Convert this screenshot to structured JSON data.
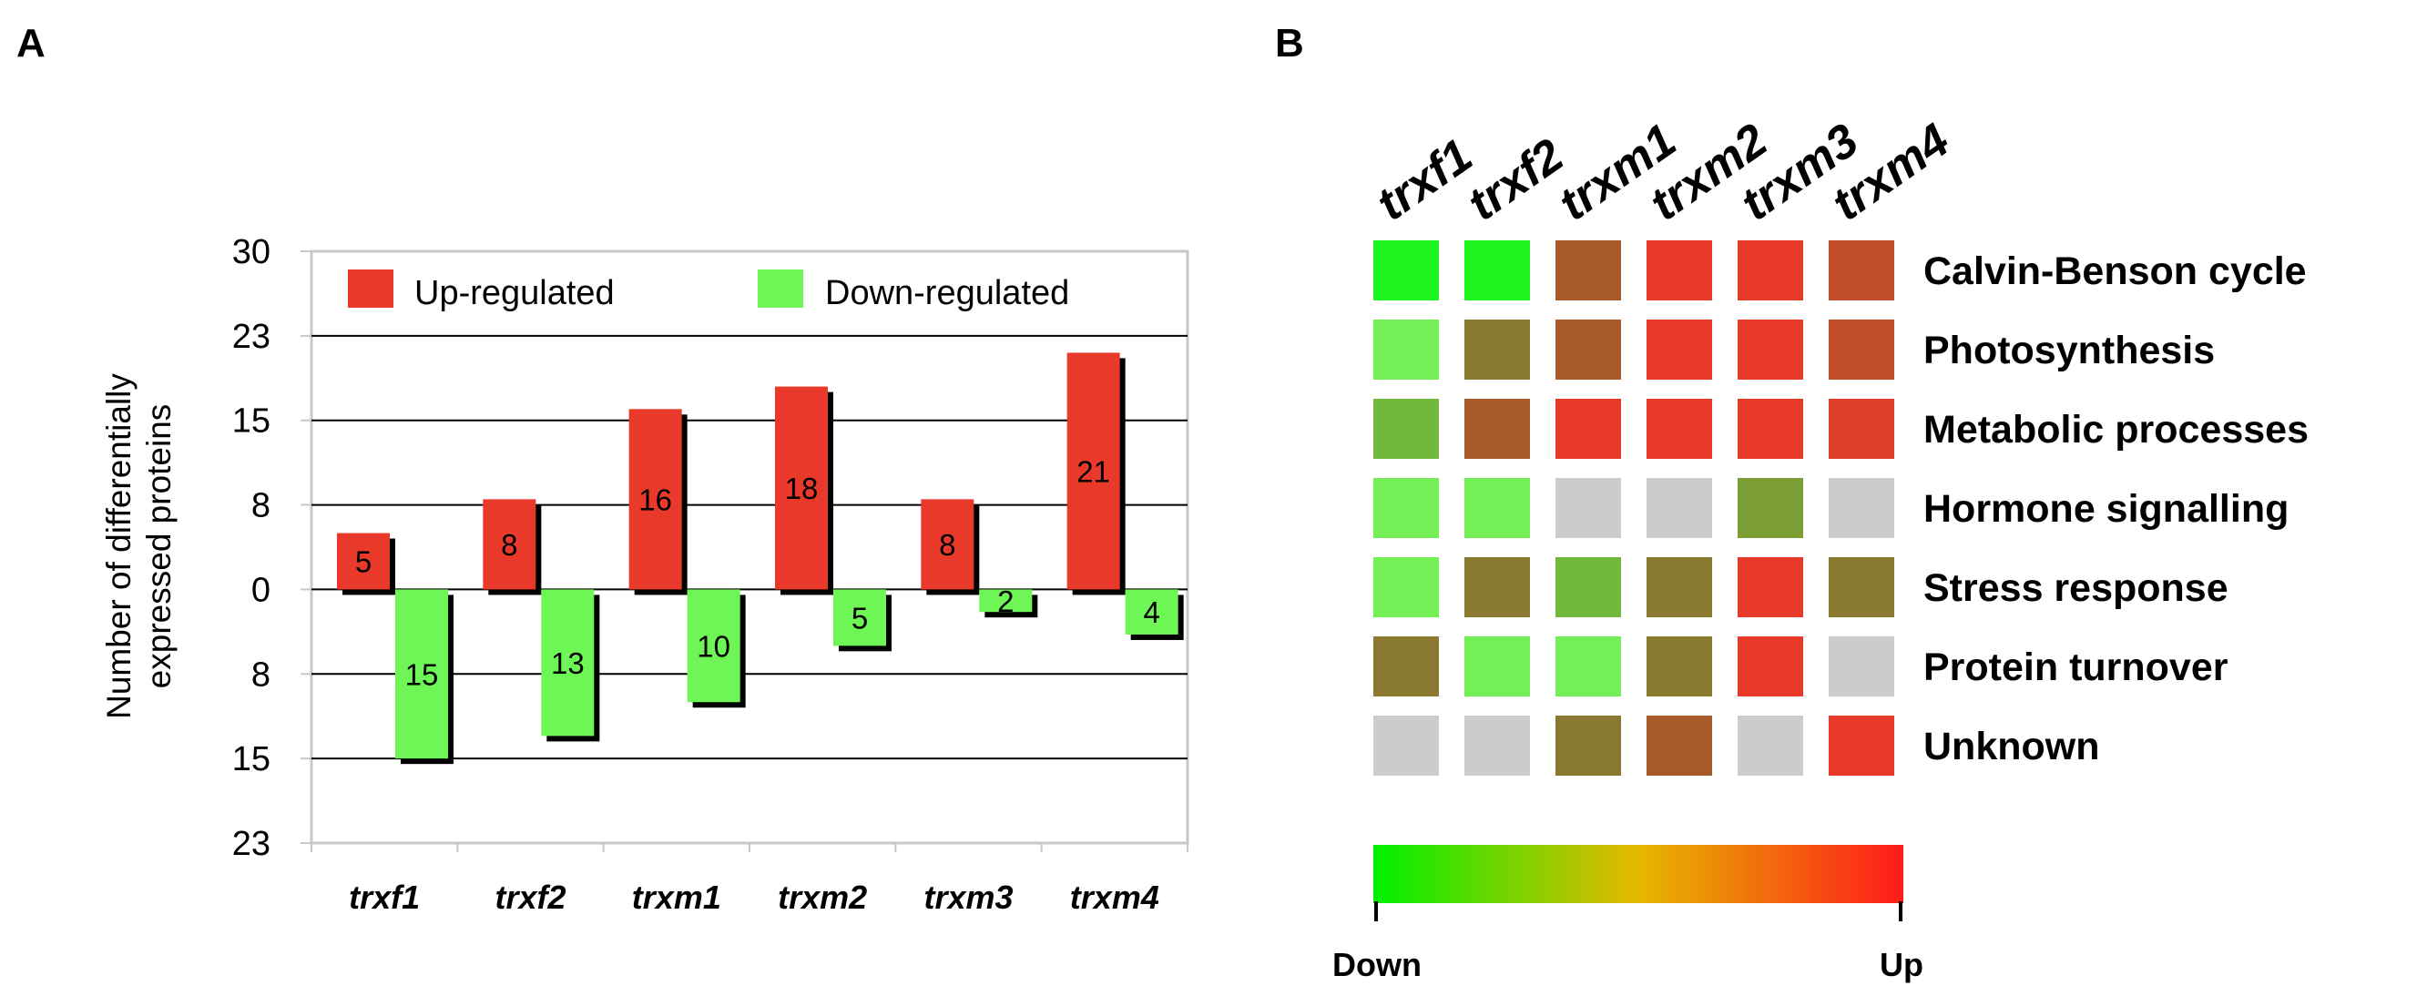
{
  "panel_a": {
    "letter": "A",
    "chart_data": {
      "type": "bar",
      "title": "",
      "ylabel_line1": "Number of differentially",
      "ylabel_line2": "expressed proteins",
      "xlabel": "",
      "categories": [
        "trxf1",
        "trxf2",
        "trxm1",
        "trxm2",
        "trxm3",
        "trxm4"
      ],
      "series": [
        {
          "name": "Up-regulated",
          "color": "#e8392b",
          "values": [
            5,
            8,
            16,
            18,
            8,
            21
          ]
        },
        {
          "name": "Down-regulated",
          "color": "#6ef556",
          "values": [
            15,
            13,
            10,
            5,
            2,
            4
          ]
        }
      ],
      "y_ticks": [
        {
          "label": "30",
          "value": 30
        },
        {
          "label": "23",
          "value": 22.5
        },
        {
          "label": "15",
          "value": 15
        },
        {
          "label": "8",
          "value": 7.5
        },
        {
          "label": "0",
          "value": 0
        },
        {
          "label": "8",
          "value": -7.5
        },
        {
          "label": "15",
          "value": -15
        },
        {
          "label": "23",
          "value": -22.5
        }
      ],
      "ylim": [
        -22.5,
        30
      ],
      "grid": true,
      "legend_position": "top"
    }
  },
  "panel_b": {
    "letter": "B",
    "chart_data": {
      "type": "heatmap",
      "columns": [
        "trxf1",
        "trxf2",
        "trxm1",
        "trxm2",
        "trxm3",
        "trxm4"
      ],
      "rows": [
        "Calvin-Benson cycle",
        "Photosynthesis",
        "Metabolic processes",
        "Hormone signalling",
        "Stress response",
        "Protein turnover",
        "Unknown"
      ],
      "cells": [
        [
          "#1ef51e",
          "#1ef51e",
          "#a85a2a",
          "#e83a2b",
          "#e83a2b",
          "#c14c2b"
        ],
        [
          "#74f056",
          "#8a7a30",
          "#a85a2a",
          "#e83a2b",
          "#e83a2b",
          "#c14c2b"
        ],
        [
          "#72b83c",
          "#a85a2a",
          "#e83a2b",
          "#e83a2b",
          "#e83a2b",
          "#dc3e2b"
        ],
        [
          "#74f056",
          "#74f056",
          "#cccccc",
          "#cccccc",
          "#7a9e34",
          "#cccccc"
        ],
        [
          "#74f056",
          "#8a7a30",
          "#72b83c",
          "#8a7a30",
          "#e83a2b",
          "#8a7a30"
        ],
        [
          "#8a7a30",
          "#74f056",
          "#74f056",
          "#8a7a30",
          "#e83a2b",
          "#cccccc"
        ],
        [
          "#cccccc",
          "#cccccc",
          "#8a7a30",
          "#a85a2a",
          "#cccccc",
          "#e83a2b"
        ]
      ],
      "scale": {
        "low_label": "Down",
        "high_label": "Up",
        "low_color": "#00f000",
        "mid_color": "#e6b800",
        "high_color": "#ff1a1a"
      }
    }
  }
}
